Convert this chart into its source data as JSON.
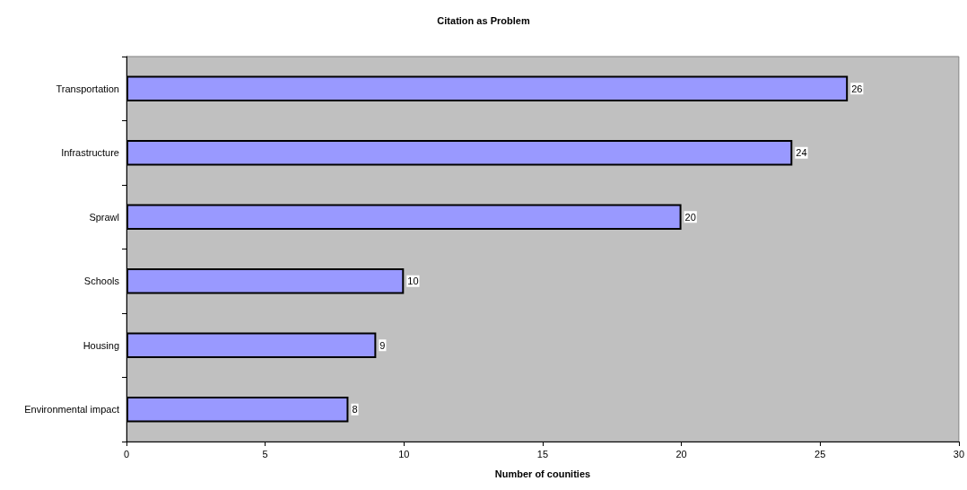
{
  "chart_data": {
    "type": "bar",
    "orientation": "horizontal",
    "title": "Citation as Problem",
    "xlabel": "Number of counities",
    "categories": [
      "Transportation",
      "Infrastructure",
      "Sprawl",
      "Schools",
      "Housing",
      "Environmental impact"
    ],
    "values": [
      26,
      24,
      20,
      10,
      9,
      8
    ],
    "color": "#9999ff",
    "xlim": [
      0,
      30
    ],
    "xticks": [
      0,
      5,
      10,
      15,
      20,
      25,
      30
    ],
    "data_labels": true,
    "grid": false
  }
}
